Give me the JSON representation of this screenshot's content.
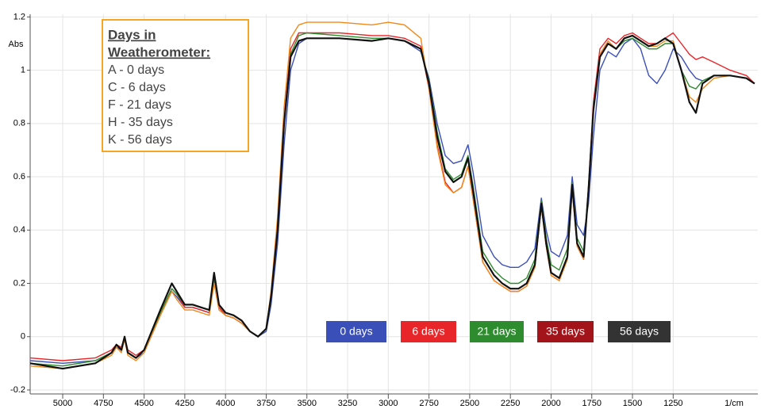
{
  "chart_data": {
    "type": "line",
    "y_label": "Abs",
    "x_label": "1/cm",
    "legend_title": [
      "Days in",
      "Weatherometer:"
    ],
    "legend_entries": [
      "A - 0 days",
      "C - 6 days",
      "F - 21 days",
      "H - 35 days",
      "K - 56 days"
    ],
    "xlim": [
      5200,
      730
    ],
    "ylim": [
      -0.215,
      1.21
    ],
    "xticks": [
      5000,
      4750,
      4500,
      4250,
      4000,
      3750,
      3500,
      3250,
      3000,
      2750,
      2500,
      2250,
      2000,
      1750,
      1500,
      1250
    ],
    "yticks": [
      -0.2,
      0,
      0.2,
      0.4,
      0.6,
      0.8,
      1,
      1.2
    ],
    "grid": true,
    "x": [
      5200,
      5000,
      4800,
      4700,
      4670,
      4640,
      4620,
      4600,
      4550,
      4500,
      4400,
      4330,
      4300,
      4250,
      4200,
      4150,
      4100,
      4070,
      4040,
      4000,
      3950,
      3900,
      3850,
      3800,
      3750,
      3720,
      3680,
      3640,
      3600,
      3550,
      3500,
      3300,
      3100,
      3000,
      2900,
      2800,
      2750,
      2700,
      2650,
      2600,
      2550,
      2510,
      2480,
      2420,
      2350,
      2300,
      2250,
      2200,
      2150,
      2100,
      2060,
      2030,
      2000,
      1950,
      1900,
      1870,
      1840,
      1800,
      1770,
      1740,
      1700,
      1650,
      1600,
      1550,
      1500,
      1450,
      1400,
      1350,
      1300,
      1250,
      1200,
      1150,
      1110,
      1070,
      1000,
      900,
      800,
      750
    ],
    "series": [
      {
        "name": "0 days",
        "color": "#3b4fb8",
        "label_color": "#3b4fb8",
        "values": [
          -0.09,
          -0.1,
          -0.09,
          -0.06,
          -0.04,
          -0.05,
          -0.01,
          -0.06,
          -0.08,
          -0.06,
          0.08,
          0.17,
          0.15,
          0.11,
          0.11,
          0.1,
          0.09,
          0.22,
          0.11,
          0.08,
          0.07,
          0.05,
          0.02,
          0.0,
          0.02,
          0.12,
          0.35,
          0.72,
          1.0,
          1.1,
          1.12,
          1.12,
          1.11,
          1.12,
          1.11,
          1.07,
          0.97,
          0.8,
          0.68,
          0.65,
          0.66,
          0.72,
          0.62,
          0.38,
          0.3,
          0.27,
          0.26,
          0.26,
          0.28,
          0.33,
          0.52,
          0.4,
          0.32,
          0.3,
          0.38,
          0.6,
          0.42,
          0.38,
          0.5,
          0.75,
          1.0,
          1.07,
          1.05,
          1.1,
          1.12,
          1.08,
          0.98,
          0.95,
          1.0,
          1.08,
          1.05,
          1.0,
          0.97,
          0.96,
          0.98,
          0.98,
          0.97,
          0.95
        ]
      },
      {
        "name": "6 days",
        "color": "#e8262a",
        "label_color": "#e8262a",
        "values": [
          -0.08,
          -0.09,
          -0.08,
          -0.05,
          -0.03,
          -0.04,
          0.0,
          -0.05,
          -0.07,
          -0.05,
          0.09,
          0.18,
          0.16,
          0.11,
          0.11,
          0.1,
          0.09,
          0.22,
          0.11,
          0.08,
          0.07,
          0.05,
          0.02,
          0.0,
          0.03,
          0.16,
          0.42,
          0.82,
          1.08,
          1.14,
          1.14,
          1.14,
          1.13,
          1.13,
          1.12,
          1.09,
          0.93,
          0.72,
          0.58,
          0.54,
          0.56,
          0.64,
          0.52,
          0.28,
          0.21,
          0.19,
          0.17,
          0.17,
          0.19,
          0.26,
          0.49,
          0.34,
          0.23,
          0.21,
          0.29,
          0.56,
          0.34,
          0.29,
          0.56,
          0.88,
          1.08,
          1.12,
          1.1,
          1.13,
          1.14,
          1.12,
          1.1,
          1.1,
          1.12,
          1.14,
          1.1,
          1.06,
          1.04,
          1.05,
          1.03,
          1.0,
          0.98,
          0.95
        ]
      },
      {
        "name": "21 days",
        "color": "#2e8b2e",
        "label_color": "#2e8b2e",
        "values": [
          -0.1,
          -0.11,
          -0.09,
          -0.06,
          -0.03,
          -0.05,
          0.0,
          -0.06,
          -0.08,
          -0.05,
          0.09,
          0.18,
          0.16,
          0.12,
          0.12,
          0.11,
          0.1,
          0.22,
          0.12,
          0.09,
          0.08,
          0.06,
          0.02,
          0.0,
          0.03,
          0.15,
          0.4,
          0.8,
          1.06,
          1.13,
          1.14,
          1.13,
          1.12,
          1.12,
          1.11,
          1.08,
          0.96,
          0.77,
          0.63,
          0.59,
          0.61,
          0.68,
          0.57,
          0.32,
          0.25,
          0.22,
          0.2,
          0.2,
          0.22,
          0.29,
          0.51,
          0.37,
          0.27,
          0.25,
          0.33,
          0.58,
          0.37,
          0.32,
          0.56,
          0.86,
          1.05,
          1.1,
          1.08,
          1.11,
          1.12,
          1.1,
          1.08,
          1.08,
          1.1,
          1.1,
          1.0,
          0.94,
          0.93,
          0.96,
          0.98,
          0.98,
          0.97,
          0.95
        ]
      },
      {
        "name": "35 days",
        "color": "#f08a1c",
        "label_color": "#a3141a",
        "values": [
          -0.11,
          -0.12,
          -0.1,
          -0.07,
          -0.04,
          -0.06,
          -0.01,
          -0.07,
          -0.09,
          -0.06,
          0.08,
          0.17,
          0.14,
          0.1,
          0.1,
          0.09,
          0.08,
          0.2,
          0.1,
          0.08,
          0.07,
          0.05,
          0.02,
          0.0,
          0.03,
          0.17,
          0.45,
          0.86,
          1.12,
          1.17,
          1.18,
          1.18,
          1.17,
          1.18,
          1.17,
          1.12,
          0.93,
          0.71,
          0.57,
          0.54,
          0.56,
          0.64,
          0.52,
          0.28,
          0.21,
          0.19,
          0.17,
          0.17,
          0.19,
          0.26,
          0.49,
          0.34,
          0.23,
          0.21,
          0.29,
          0.55,
          0.34,
          0.29,
          0.55,
          0.86,
          1.06,
          1.11,
          1.08,
          1.12,
          1.13,
          1.11,
          1.09,
          1.09,
          1.11,
          1.11,
          1.0,
          0.9,
          0.88,
          0.93,
          0.97,
          0.98,
          0.97,
          0.95
        ]
      },
      {
        "name": "56 days",
        "color": "#111111",
        "label_color": "#333333",
        "values": [
          -0.1,
          -0.12,
          -0.1,
          -0.06,
          -0.03,
          -0.05,
          0.0,
          -0.06,
          -0.08,
          -0.05,
          0.1,
          0.2,
          0.17,
          0.12,
          0.12,
          0.11,
          0.1,
          0.24,
          0.12,
          0.09,
          0.08,
          0.06,
          0.02,
          0.0,
          0.03,
          0.15,
          0.4,
          0.8,
          1.05,
          1.11,
          1.12,
          1.12,
          1.11,
          1.12,
          1.11,
          1.08,
          0.95,
          0.75,
          0.62,
          0.58,
          0.6,
          0.67,
          0.55,
          0.3,
          0.23,
          0.2,
          0.18,
          0.18,
          0.2,
          0.27,
          0.5,
          0.35,
          0.24,
          0.22,
          0.3,
          0.57,
          0.35,
          0.3,
          0.55,
          0.85,
          1.05,
          1.1,
          1.08,
          1.12,
          1.13,
          1.11,
          1.09,
          1.1,
          1.12,
          1.1,
          1.0,
          0.88,
          0.84,
          0.95,
          0.98,
          0.98,
          0.97,
          0.95
        ]
      }
    ]
  }
}
